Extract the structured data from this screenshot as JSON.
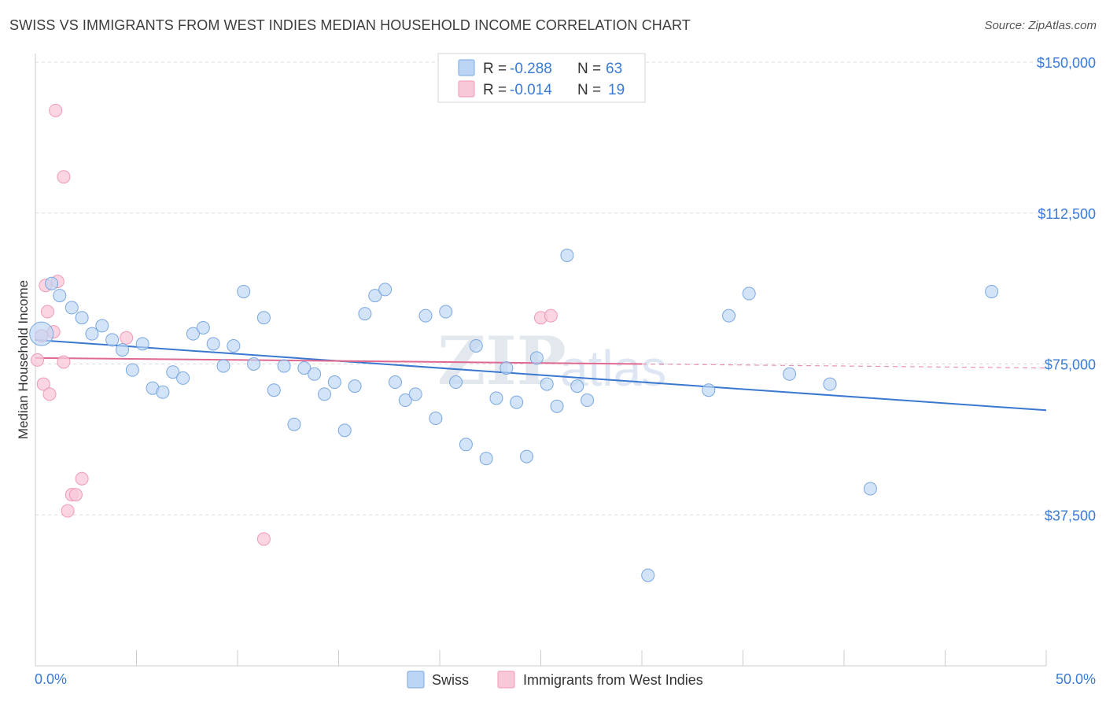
{
  "title": "SWISS VS IMMIGRANTS FROM WEST INDIES MEDIAN HOUSEHOLD INCOME CORRELATION CHART",
  "source": "Source: ZipAtlas.com",
  "watermark": {
    "zip": "ZIP",
    "atlas": "atlas"
  },
  "legend": {
    "r_label": "R =",
    "n_label": "N =",
    "entries": [
      {
        "r": "-0.288",
        "n": "63"
      },
      {
        "r": "-0.014",
        "n": "19"
      }
    ]
  },
  "bottom_legend": [
    "Swiss",
    "Immigrants from West Indies"
  ],
  "colors": {
    "swiss_fill": "#bcd5f5",
    "swiss_stroke": "#7aa7e0",
    "swiss_line": "#3a78d0",
    "wi_fill": "#f9c8d8",
    "wi_stroke": "#ee9ab6",
    "wi_line": "#e0698f",
    "axis_text": "#3a7bd5"
  },
  "chart_data": {
    "type": "scatter",
    "title": "SWISS VS IMMIGRANTS FROM WEST INDIES MEDIAN HOUSEHOLD INCOME CORRELATION CHART",
    "xlabel": "",
    "ylabel": "Median Household Income",
    "xlim": [
      0,
      50
    ],
    "ylim": [
      0,
      150000
    ],
    "x_tick_labels": [
      "0.0%",
      "50.0%"
    ],
    "y_ticks": [
      37500,
      75000,
      112500,
      150000
    ],
    "y_tick_labels": [
      "$37,500",
      "$75,000",
      "$112,500",
      "$150,000"
    ],
    "grid": true,
    "legend_position": "top-center",
    "series": [
      {
        "name": "Swiss",
        "r": -0.288,
        "n": 63,
        "trend": {
          "x": [
            0,
            50
          ],
          "y": [
            81000,
            63500
          ]
        },
        "points": [
          {
            "x": 0.3,
            "y": 82500,
            "big": true
          },
          {
            "x": 0.8,
            "y": 95000
          },
          {
            "x": 1.2,
            "y": 92000
          },
          {
            "x": 1.8,
            "y": 89000
          },
          {
            "x": 2.3,
            "y": 86500
          },
          {
            "x": 2.8,
            "y": 82500
          },
          {
            "x": 3.3,
            "y": 84500
          },
          {
            "x": 3.8,
            "y": 81000
          },
          {
            "x": 4.3,
            "y": 78500
          },
          {
            "x": 4.8,
            "y": 73500
          },
          {
            "x": 5.3,
            "y": 80000
          },
          {
            "x": 5.8,
            "y": 69000
          },
          {
            "x": 6.3,
            "y": 68000
          },
          {
            "x": 6.8,
            "y": 73000
          },
          {
            "x": 7.3,
            "y": 71500
          },
          {
            "x": 7.8,
            "y": 82500
          },
          {
            "x": 8.3,
            "y": 84000
          },
          {
            "x": 8.8,
            "y": 80000
          },
          {
            "x": 9.3,
            "y": 74500
          },
          {
            "x": 9.8,
            "y": 79500
          },
          {
            "x": 10.3,
            "y": 93000
          },
          {
            "x": 10.8,
            "y": 75000
          },
          {
            "x": 11.3,
            "y": 86500
          },
          {
            "x": 11.8,
            "y": 68500
          },
          {
            "x": 12.3,
            "y": 74500
          },
          {
            "x": 12.8,
            "y": 60000
          },
          {
            "x": 13.3,
            "y": 74000
          },
          {
            "x": 13.8,
            "y": 72500
          },
          {
            "x": 14.3,
            "y": 67500
          },
          {
            "x": 14.8,
            "y": 70500
          },
          {
            "x": 15.3,
            "y": 58500
          },
          {
            "x": 15.8,
            "y": 69500
          },
          {
            "x": 16.3,
            "y": 87500
          },
          {
            "x": 16.8,
            "y": 92000
          },
          {
            "x": 17.3,
            "y": 93500
          },
          {
            "x": 17.8,
            "y": 70500
          },
          {
            "x": 18.3,
            "y": 66000
          },
          {
            "x": 18.8,
            "y": 67500
          },
          {
            "x": 19.3,
            "y": 87000
          },
          {
            "x": 19.8,
            "y": 61500
          },
          {
            "x": 20.3,
            "y": 88000
          },
          {
            "x": 20.8,
            "y": 70500
          },
          {
            "x": 21.3,
            "y": 55000
          },
          {
            "x": 21.8,
            "y": 79500
          },
          {
            "x": 22.3,
            "y": 51500
          },
          {
            "x": 22.8,
            "y": 66500
          },
          {
            "x": 23.3,
            "y": 74000
          },
          {
            "x": 23.8,
            "y": 65500
          },
          {
            "x": 24.3,
            "y": 52000
          },
          {
            "x": 24.8,
            "y": 76500
          },
          {
            "x": 25.3,
            "y": 70000
          },
          {
            "x": 25.8,
            "y": 64500
          },
          {
            "x": 26.3,
            "y": 102000
          },
          {
            "x": 26.8,
            "y": 69500
          },
          {
            "x": 27.3,
            "y": 66000
          },
          {
            "x": 30.3,
            "y": 22500
          },
          {
            "x": 33.3,
            "y": 68500
          },
          {
            "x": 34.3,
            "y": 87000
          },
          {
            "x": 35.3,
            "y": 92500
          },
          {
            "x": 37.3,
            "y": 72500
          },
          {
            "x": 39.3,
            "y": 70000
          },
          {
            "x": 41.3,
            "y": 44000
          },
          {
            "x": 47.3,
            "y": 93000
          }
        ]
      },
      {
        "name": "Immigrants from West Indies",
        "r": -0.014,
        "n": 19,
        "trend": {
          "x": [
            0,
            30
          ],
          "y": [
            76500,
            75000
          ]
        },
        "trend_dashed": {
          "x": [
            30,
            50
          ],
          "y": [
            75000,
            74000
          ]
        },
        "points": [
          {
            "x": 0.1,
            "y": 76000
          },
          {
            "x": 0.3,
            "y": 82000
          },
          {
            "x": 0.4,
            "y": 70000
          },
          {
            "x": 0.5,
            "y": 94500
          },
          {
            "x": 0.6,
            "y": 88000
          },
          {
            "x": 0.7,
            "y": 67500
          },
          {
            "x": 0.9,
            "y": 83000
          },
          {
            "x": 1.0,
            "y": 138000
          },
          {
            "x": 1.1,
            "y": 95500
          },
          {
            "x": 1.4,
            "y": 75500
          },
          {
            "x": 1.4,
            "y": 121500
          },
          {
            "x": 1.6,
            "y": 38500
          },
          {
            "x": 1.8,
            "y": 42500
          },
          {
            "x": 2.0,
            "y": 42500
          },
          {
            "x": 2.3,
            "y": 46500
          },
          {
            "x": 4.5,
            "y": 81500
          },
          {
            "x": 11.3,
            "y": 31500
          },
          {
            "x": 25.0,
            "y": 86500
          },
          {
            "x": 25.5,
            "y": 87000
          }
        ]
      }
    ]
  }
}
